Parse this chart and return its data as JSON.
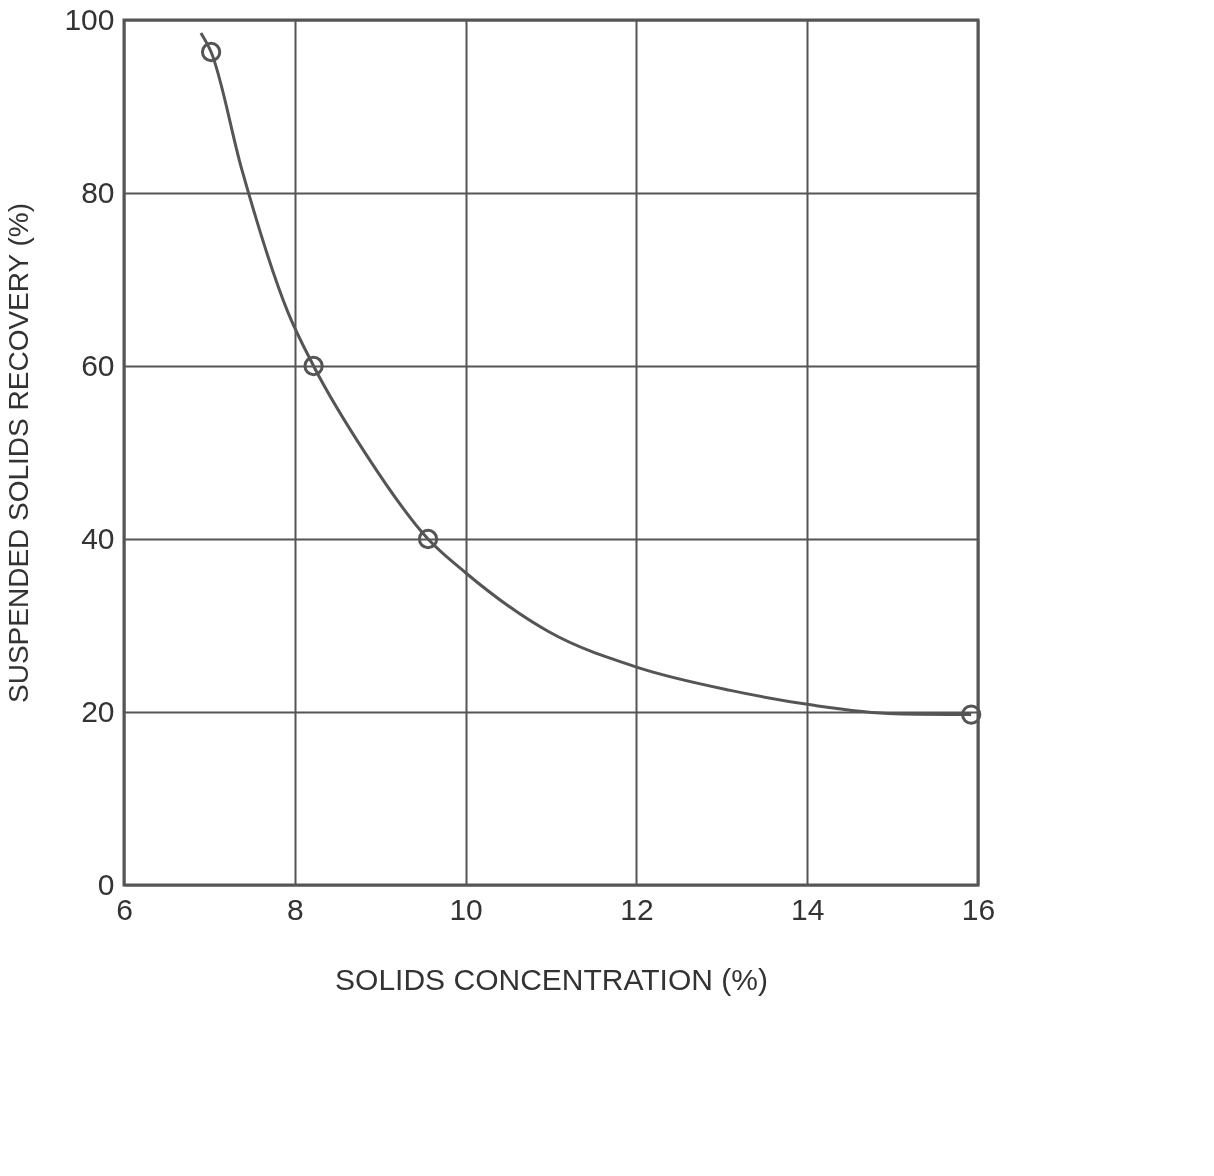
{
  "chart_data": {
    "type": "line",
    "xlabel": "SOLIDS   CONCENTRATION  (%)",
    "ylabel": "SUSPENDED   SOLIDS   RECOVERY  (%)",
    "xlim": [
      6,
      16
    ],
    "xticks": [
      6,
      8,
      10,
      12,
      14,
      16
    ],
    "ylim": [
      0,
      100
    ],
    "yticks": [
      0,
      20,
      40,
      60,
      80,
      100
    ],
    "grid": true,
    "series": [
      {
        "color": "#555555",
        "marker": "none",
        "line_style": "solid",
        "x": [
          6.9,
          7.02,
          7.38,
          7.92,
          8.22,
          8.84,
          9.56,
          10.0,
          10.97,
          12.03,
          13.1,
          14.06,
          15.03,
          15.92
        ],
        "values": [
          98.5,
          96.3,
          82.7,
          66.2,
          60,
          49.7,
          40,
          36.1,
          29.3,
          25.1,
          22.5,
          20.8,
          19.8,
          19.7
        ]
      },
      {
        "type": "scatter",
        "color": "#555555",
        "marker": "circle",
        "x": [
          7.02,
          8.22,
          9.56,
          15.92
        ],
        "values": [
          96.3,
          60,
          40,
          19.7
        ]
      }
    ]
  }
}
